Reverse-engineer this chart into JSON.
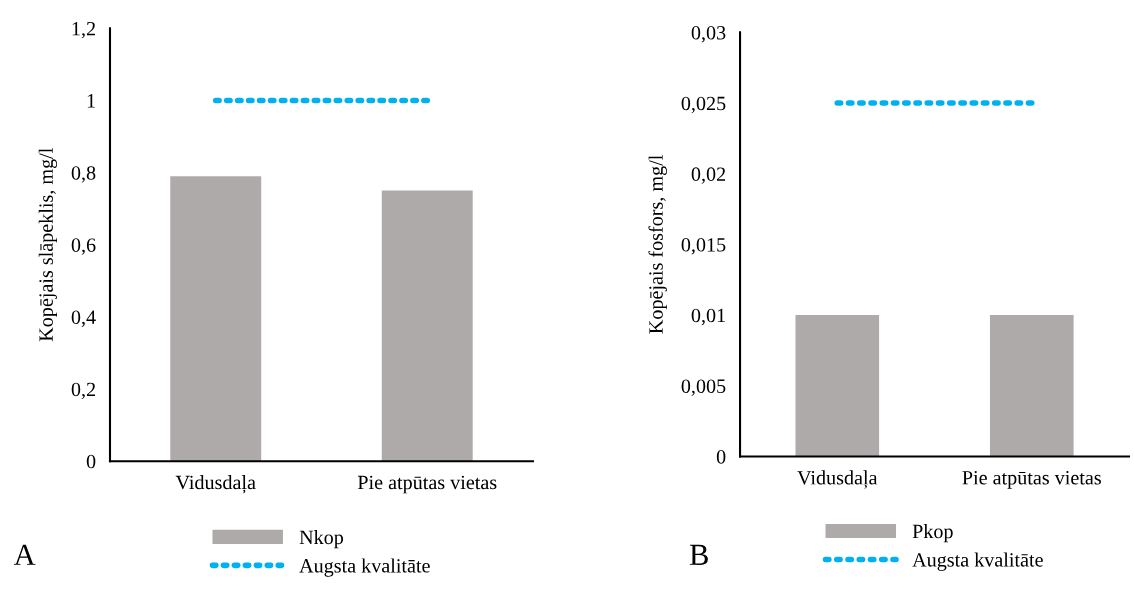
{
  "chart_data": [
    {
      "type": "bar",
      "categories": [
        "Vidusdaļa",
        "Pie atpūtas vietas"
      ],
      "ylabel": "Kopējais slāpeklis, mg/l",
      "annotations": [
        "A"
      ],
      "series": [
        {
          "name": "Nkop",
          "type": "bar",
          "color": "#aeaaaa",
          "values": [
            0.79,
            0.75
          ]
        },
        {
          "name": "Augsta kvalitāte",
          "type": "line",
          "color": "#00b0f0",
          "line_style": "dotted",
          "values": [
            1,
            1
          ]
        }
      ],
      "ylim": [
        0,
        1.2
      ],
      "yticks": [
        0,
        {
          "value": 0.2,
          "label": "0,2"
        },
        {
          "value": 0.4,
          "label": "0,4"
        },
        {
          "value": 0.6,
          "label": "0,6"
        },
        {
          "value": 0.8,
          "label": "0,8"
        },
        1,
        {
          "value": 1.2,
          "label": "1,2"
        }
      ],
      "grid": false,
      "legend": "bottom"
    },
    {
      "type": "bar",
      "categories": [
        "Vidusdaļa",
        "Pie atpūtas vietas"
      ],
      "ylabel": "Kopējais fosfors, mg/l",
      "annotations": [
        "B"
      ],
      "series": [
        {
          "name": "Pkop",
          "type": "bar",
          "color": "#aeaaaa",
          "values": [
            0.01,
            0.01
          ]
        },
        {
          "name": "Augsta kvalitāte",
          "type": "line",
          "color": "#00b0f0",
          "line_style": "dotted",
          "values": [
            0.025,
            0.025
          ]
        }
      ],
      "ylim": [
        0,
        0.03
      ],
      "yticks": [
        0,
        {
          "value": 0.005,
          "label": "0,005"
        },
        {
          "value": 0.01,
          "label": "0,01"
        },
        {
          "value": 0.015,
          "label": "0,015"
        },
        {
          "value": 0.02,
          "label": "0,02"
        },
        {
          "value": 0.025,
          "label": "0,025"
        },
        {
          "value": 0.03,
          "label": "0,03"
        }
      ],
      "grid": false,
      "legend": "bottom"
    }
  ]
}
